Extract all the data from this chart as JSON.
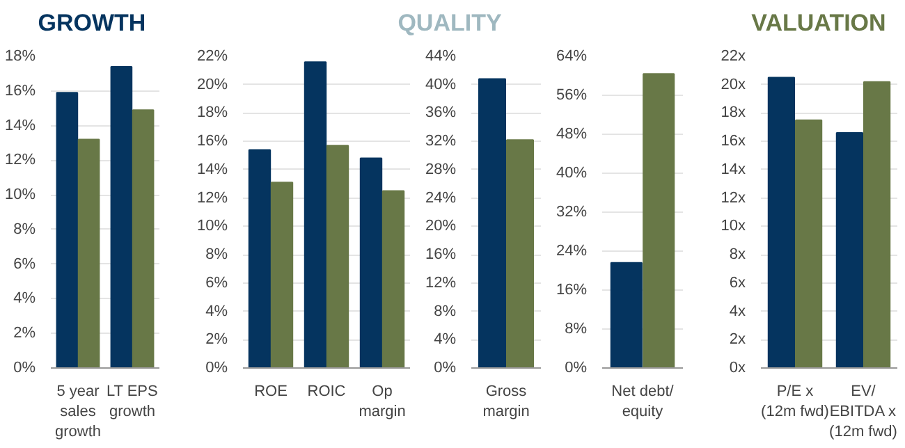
{
  "chart_data": [
    {
      "type": "bar",
      "title": "GROWTH",
      "categories": [
        "5 year\nsales\ngrowth",
        "LT EPS\ngrowth"
      ],
      "series": [
        {
          "color": "#05345f",
          "values": [
            15.9,
            17.4
          ]
        },
        {
          "color": "#687847",
          "values": [
            13.2,
            14.9
          ]
        }
      ],
      "ylim": [
        0,
        18
      ],
      "yticks": [
        {
          "value": 0,
          "label": "0%"
        },
        {
          "value": 2,
          "label": "2%"
        },
        {
          "value": 4,
          "label": "4%"
        },
        {
          "value": 6,
          "label": "6%"
        },
        {
          "value": 8,
          "label": "8%"
        },
        {
          "value": 10,
          "label": "10%"
        },
        {
          "value": 12,
          "label": "12%"
        },
        {
          "value": 14,
          "label": "14%"
        },
        {
          "value": 16,
          "label": "16%"
        },
        {
          "value": 18,
          "label": "18%"
        }
      ],
      "grid": "y"
    },
    {
      "type": "bar",
      "title": "QUALITY",
      "categories": [
        "ROE",
        "ROIC",
        "Op\nmargin"
      ],
      "series": [
        {
          "color": "#05345f",
          "values": [
            15.4,
            21.6,
            14.8
          ]
        },
        {
          "color": "#687847",
          "values": [
            13.1,
            15.7,
            12.5
          ]
        }
      ],
      "ylim": [
        0,
        22
      ],
      "yticks": [
        {
          "value": 0,
          "label": "0%"
        },
        {
          "value": 2,
          "label": "2%"
        },
        {
          "value": 4,
          "label": "4%"
        },
        {
          "value": 6,
          "label": "6%"
        },
        {
          "value": 8,
          "label": "8%"
        },
        {
          "value": 10,
          "label": "10%"
        },
        {
          "value": 12,
          "label": "12%"
        },
        {
          "value": 14,
          "label": "14%"
        },
        {
          "value": 16,
          "label": "16%"
        },
        {
          "value": 18,
          "label": "18%"
        },
        {
          "value": 20,
          "label": "20%"
        },
        {
          "value": 22,
          "label": "22%"
        }
      ],
      "grid": "y"
    },
    {
      "type": "bar",
      "categories": [
        "Gross\nmargin"
      ],
      "series": [
        {
          "color": "#05345f",
          "values": [
            40.8
          ]
        },
        {
          "color": "#687847",
          "values": [
            32.2
          ]
        }
      ],
      "ylim": [
        0,
        44
      ],
      "yticks": [
        {
          "value": 0,
          "label": "0%"
        },
        {
          "value": 4,
          "label": "4%"
        },
        {
          "value": 8,
          "label": "8%"
        },
        {
          "value": 12,
          "label": "12%"
        },
        {
          "value": 16,
          "label": "16%"
        },
        {
          "value": 20,
          "label": "20%"
        },
        {
          "value": 24,
          "label": "24%"
        },
        {
          "value": 28,
          "label": "28%"
        },
        {
          "value": 32,
          "label": "32%"
        },
        {
          "value": 36,
          "label": "36%"
        },
        {
          "value": 40,
          "label": "40%"
        },
        {
          "value": 44,
          "label": "44%"
        }
      ],
      "grid": "y"
    },
    {
      "type": "bar",
      "categories": [
        "Net debt/\nequity"
      ],
      "series": [
        {
          "color": "#05345f",
          "values": [
            21.6
          ]
        },
        {
          "color": "#687847",
          "values": [
            60.4
          ]
        }
      ],
      "ylim": [
        0,
        64
      ],
      "yticks": [
        {
          "value": 0,
          "label": "0%"
        },
        {
          "value": 8,
          "label": "8%"
        },
        {
          "value": 16,
          "label": "16%"
        },
        {
          "value": 24,
          "label": "24%"
        },
        {
          "value": 32,
          "label": "32%"
        },
        {
          "value": 40,
          "label": "40%"
        },
        {
          "value": 48,
          "label": "48%"
        },
        {
          "value": 56,
          "label": "56%"
        },
        {
          "value": 64,
          "label": "64%"
        }
      ],
      "grid": "y"
    },
    {
      "type": "bar",
      "title": "VALUATION",
      "categories": [
        "P/E x\n(12m fwd)",
        "EV/\nEBITDA x\n(12m fwd)"
      ],
      "series": [
        {
          "color": "#05345f",
          "values": [
            20.5,
            16.6
          ]
        },
        {
          "color": "#687847",
          "values": [
            17.5,
            20.2
          ]
        }
      ],
      "ylim": [
        0,
        22
      ],
      "yticks": [
        {
          "value": 0,
          "label": "0x"
        },
        {
          "value": 2,
          "label": "2x"
        },
        {
          "value": 4,
          "label": "4x"
        },
        {
          "value": 6,
          "label": "6x"
        },
        {
          "value": 8,
          "label": "8x"
        },
        {
          "value": 10,
          "label": "10x"
        },
        {
          "value": 12,
          "label": "12x"
        },
        {
          "value": 14,
          "label": "14x"
        },
        {
          "value": 16,
          "label": "16x"
        },
        {
          "value": 18,
          "label": "18x"
        },
        {
          "value": 20,
          "label": "20x"
        },
        {
          "value": 22,
          "label": "22x"
        }
      ],
      "grid": "y"
    }
  ]
}
